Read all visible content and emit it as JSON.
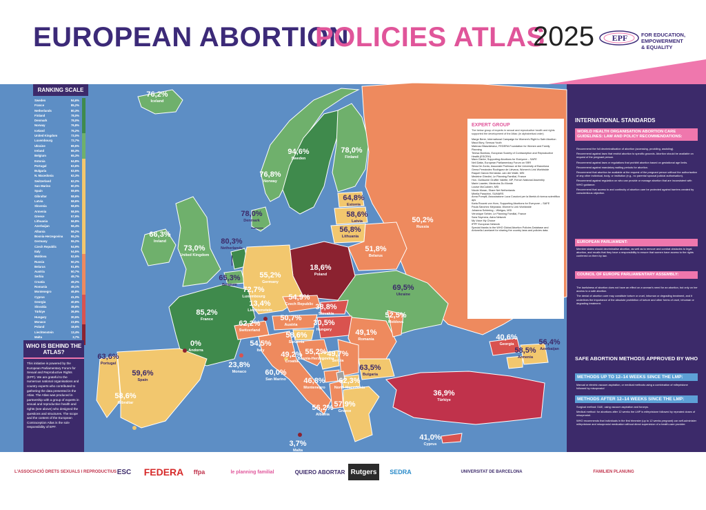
{
  "header": {
    "title_part1": "EUROPEAN ABORTION",
    "title_part2": "POLICIES ATLAS",
    "year": "2025",
    "org_logo": "EPF",
    "org_tagline": "FOR EDUCATION,\nEMPOWERMENT\n& EQUALITY"
  },
  "colors": {
    "dark_green": "#3f8a4c",
    "light_green": "#6fb06c",
    "yellow": "#f2c76e",
    "orange": "#ee8a5e",
    "red": "#d9534f",
    "dark_red": "#8b2230",
    "crimson": "#c0324b",
    "navy": "#3c2a6a",
    "pink": "#ef77ad",
    "sea": "#5d8ec5"
  },
  "ranking": {
    "title": "RANKING SCALE",
    "rows": [
      {
        "name": "Sweden",
        "value": "94,6%"
      },
      {
        "name": "France",
        "value": "85,2%"
      },
      {
        "name": "Netherlands",
        "value": "80,3%"
      },
      {
        "name": "Finland",
        "value": "78,0%"
      },
      {
        "name": "Denmark",
        "value": "78,0%"
      },
      {
        "name": "Norway",
        "value": "76,8%"
      },
      {
        "name": "Iceland",
        "value": "76,2%"
      },
      {
        "name": "United Kingdom",
        "value": "73,0%"
      },
      {
        "name": "Luxembourg",
        "value": "72,7%"
      },
      {
        "name": "Ukraine",
        "value": "69,5%"
      },
      {
        "name": "Ireland",
        "value": "66,3%"
      },
      {
        "name": "Belgium",
        "value": "65,3%"
      },
      {
        "name": "Estonia",
        "value": "64,8%"
      },
      {
        "name": "Portugal",
        "value": "63,6%"
      },
      {
        "name": "Bulgaria",
        "value": "63,5%"
      },
      {
        "name": "N. Macedonia",
        "value": "62,3%"
      },
      {
        "name": "Switzerland",
        "value": "62,2%"
      },
      {
        "name": "San Marino",
        "value": "60,0%"
      },
      {
        "name": "Spain",
        "value": "59,6%"
      },
      {
        "name": "Gibraltar",
        "value": "58,6%"
      },
      {
        "name": "Latvia",
        "value": "58,6%"
      },
      {
        "name": "Slovenia",
        "value": "58,6%"
      },
      {
        "name": "Armenia",
        "value": "58,5%"
      },
      {
        "name": "Greece",
        "value": "57,9%"
      },
      {
        "name": "Lithuania",
        "value": "56,8%"
      },
      {
        "name": "Azerbaijan",
        "value": "56,4%"
      },
      {
        "name": "Albania",
        "value": "56,2%"
      },
      {
        "name": "Bosnia-Herzegovina",
        "value": "55,2%"
      },
      {
        "name": "Germany",
        "value": "55,2%"
      },
      {
        "name": "Czech Republic",
        "value": "54,9%"
      },
      {
        "name": "Italy",
        "value": "54,5%"
      },
      {
        "name": "Moldova",
        "value": "52,5%"
      },
      {
        "name": "Russia",
        "value": "50,2%"
      },
      {
        "name": "Belarus",
        "value": "51,8%"
      },
      {
        "name": "Austria",
        "value": "50,7%"
      },
      {
        "name": "Serbia",
        "value": "49,7%"
      },
      {
        "name": "Croatia",
        "value": "49,2%"
      },
      {
        "name": "Romania",
        "value": "49,1%"
      },
      {
        "name": "Montenegro",
        "value": "46,8%"
      },
      {
        "name": "Cyprus",
        "value": "41,0%"
      },
      {
        "name": "Georgia",
        "value": "40,6%"
      },
      {
        "name": "Slovakia",
        "value": "38,8%"
      },
      {
        "name": "Türkiye",
        "value": "36,9%"
      },
      {
        "name": "Hungary",
        "value": "30,5%"
      },
      {
        "name": "Monaco",
        "value": "23,8%"
      },
      {
        "name": "Poland",
        "value": "18,6%"
      },
      {
        "name": "Liechtenstein",
        "value": "13,4%"
      },
      {
        "name": "Malta",
        "value": "3,7%"
      },
      {
        "name": "Andorra",
        "value": "0%"
      }
    ]
  },
  "countries": [
    {
      "name": "Iceland",
      "value": "76,2%"
    },
    {
      "name": "Sweden",
      "value": "94,6%"
    },
    {
      "name": "Finland",
      "value": "78,0%"
    },
    {
      "name": "Norway",
      "value": "76,8%"
    },
    {
      "name": "Denmark",
      "value": "78,0%"
    },
    {
      "name": "Estonia",
      "value": "64,8%"
    },
    {
      "name": "Latvia",
      "value": "58,6%"
    },
    {
      "name": "Lithuania",
      "value": "56,8%"
    },
    {
      "name": "Russia",
      "value": "50,2%"
    },
    {
      "name": "Ireland",
      "value": "66,3%"
    },
    {
      "name": "United Kingdom",
      "value": "73,0%"
    },
    {
      "name": "Netherlands",
      "value": "80,3%"
    },
    {
      "name": "Belgium",
      "value": "65,3%"
    },
    {
      "name": "Luxembourg",
      "value": "72,7%"
    },
    {
      "name": "Germany",
      "value": "55,2%"
    },
    {
      "name": "Poland",
      "value": "18,6%"
    },
    {
      "name": "Belarus",
      "value": "51,8%"
    },
    {
      "name": "Ukraine",
      "value": "69,5%"
    },
    {
      "name": "France",
      "value": "85,2%"
    },
    {
      "name": "Liechtenstein",
      "value": "13,4%"
    },
    {
      "name": "Czech Republic",
      "value": "54,9%"
    },
    {
      "name": "Slovakia",
      "value": "38,8%"
    },
    {
      "name": "Switzerland",
      "value": "62,2%"
    },
    {
      "name": "Austria",
      "value": "50,7%"
    },
    {
      "name": "Hungary",
      "value": "30,5%"
    },
    {
      "name": "Moldova",
      "value": "52,5%"
    },
    {
      "name": "Romania",
      "value": "49,1%"
    },
    {
      "name": "Andorra",
      "value": "0%"
    },
    {
      "name": "Slovenia",
      "value": "58,6%"
    },
    {
      "name": "Italy",
      "value": "54,5%"
    },
    {
      "name": "Croatia",
      "value": "49,2%"
    },
    {
      "name": "Serbia",
      "value": "49,7%"
    },
    {
      "name": "Bosnia-Herzegovina",
      "value": "55,2%"
    },
    {
      "name": "Georgia",
      "value": "40,6%"
    },
    {
      "name": "Azerbaijan",
      "value": "56,4%"
    },
    {
      "name": "Armenia",
      "value": "58,5%"
    },
    {
      "name": "Portugal",
      "value": "63,6%"
    },
    {
      "name": "Spain",
      "value": "59,6%"
    },
    {
      "name": "Monaco",
      "value": "23,8%"
    },
    {
      "name": "San Marino",
      "value": "60,0%"
    },
    {
      "name": "Montenegro",
      "value": "46,8%"
    },
    {
      "name": "North Macedonia",
      "value": "62,3%"
    },
    {
      "name": "Bulgaria",
      "value": "63,5%"
    },
    {
      "name": "Türkiye",
      "value": "36,9%"
    },
    {
      "name": "Gibraltar",
      "value": "58,6%"
    },
    {
      "name": "Albania",
      "value": "56,2%"
    },
    {
      "name": "Greece",
      "value": "57,9%"
    },
    {
      "name": "Malta",
      "value": "3,7%"
    },
    {
      "name": "Cyprus",
      "value": "41,0%"
    }
  ],
  "who": {
    "title": "WHO IS BEHIND THE ATLAS?",
    "text": "This initiative is powered by the European Parliamentary Forum for Sexual and Reproductive Rights (EPF). We are grateful to the numerous national organisations and country experts who contributed to gathering the data presented in the Atlas. The Atlas was produced in partnership with a group of experts in sexual and reproductive health and rights (see above) who designed the questions and structures. The scope and the content of the European Contraception Atlas is the sole responsibility of EPF."
  },
  "expert": {
    "title": "EXPERT GROUP",
    "intro": "The below group of experts in sexual and reproductive health and rights supported the development of the Atlas: (in alphabetical order)",
    "members": [
      "Marge Berer, International Campaign for Women's Right to Safe Abortion",
      "Maud Bury, Sensoa Youth",
      "Mateusz Błaszkiewicz, FEDERA Foundation for Women and Family Planning",
      "Teresa Bombas, European Society of Contraception and Reproductive Health (ESCRH)",
      "Mara Clarke, Supporting Abortions for Everyone – SAFE",
      "Neil Datta, European Parliamentary Forum on SRR",
      "Silvia De Zordo, Associate Professor at the University of Barcelona",
      "Gema Fernández Rodríguez de Liévana, Women's Link Worldwide",
      "Raquel García Hernánda -van der Walle, MSI",
      "Medeine Ghedini, Le Planning Familial, France",
      "Hon. Guillaume Gruffier Valette, MP, French National Assembly",
      "Marie Laanter, Medecins Du Monde",
      "Louise McCudden, MSI",
      "Nicole Moran, Share Net Netherlands",
      "Mirella Parachini, SUMARS",
      "Anna Pompili, Associazione Luca Coscioni per la libertà di ricerca scientifica aps",
      "Karla Roczek von Horn, Supporting Abortions for Everyone – SAFE",
      "Paula Sánchez Mejorada, Women's Link Worldwide",
      "Johanna Schiering – Wielgus, MSI",
      "Veronique Sehier, Le Planning Familial, France",
      "Sara Szymera, Astra Network",
      "My Voice My Choice",
      "IPPF European Network",
      "Special thanks to the WHO Global Abortion Policies Database and Antonella Lavelanet for sharing the country laws and policies data."
    ]
  },
  "standards": {
    "title": "INTERNATIONAL STANDARDS",
    "who_box": "WORLD HEALTH ORGANISATION ABORTION CARE GUIDELINES: LAW AND POLICY RECOMMENDATIONS:",
    "who_items": [
      "Recommend the full decriminalisation of abortion (accessing, providing, assisting).",
      "Recommend against laws that restrict abortion to specific grounds. Abortion should be available on request of the pregnant person.",
      "Recommend against laws or regulations that prohibit abortion based on gestational age limits.",
      "Recommend against mandatory waiting periods for abortion.",
      "Recommend that abortion be available at the request of the pregnant person without the authorisation of any other individual, body, or institution (e.g., no parental spousal judicial authorisation).",
      "Recommend against regulation on who can provide or manage abortion that are inconsistent with WHO guidance.",
      "Recommend that access to and continuity of abortion care be protected against barriers created by conscientious objection."
    ],
    "ep_box": "EUROPEAN PARLIAMENT:",
    "ep_text": "Member states should decriminalise abortion, as well as to remove and combat obstacles to legal abortion, and recalls that they have a responsibility to ensure that women have access to the rights conferred on them by law.",
    "coe_box": "COUNCIL OF EUROPE PARLIAMENTARY ASSEMBLY:",
    "coe_items": [
      "The lawfulness of abortion does not have an effect on a woman's need for an abortion, but only on her access to a safe abortion.",
      "The denial of abortion care may constitute torture or cruel, inhuman or degrading treatment, and it underlines the importance of the absolute prohibition of torture and other forms of cruel, inhuman or degrading treatment."
    ]
  },
  "methods": {
    "title": "SAFE ABORTION METHODS APPROVED BY WHO",
    "early_box": "METHODS UP TO 12–14 WEEKS SINCE THE LMP:",
    "early_text": "Manual or electric vacuum aspiration, or medical methods using a combination of mifepristone followed by misoprostol",
    "late_box": "METHODS AFTER 12–14 WEEKS SINCE THE LMP:",
    "late_items": [
      "Surgical method: D&E, using vacuum aspiration and forceps.",
      "Medical method: for abortions after 12 weeks the LMP is mifepristone followed by repeated doses of misoprostol.",
      "WHO recommends that individuals in the first trimester (up to 12 weeks pregnant) can self-administer mifepristone and misoprostol medication without direct supervision of a health-care provider."
    ]
  },
  "partners": [
    "L'ASSOCIACIÓ DRETS SEXUALS I REPRODUCTIUS",
    "ESC",
    "FEDERA",
    "ffpa",
    "le planning familial",
    "QUIERO ABORTAR",
    "Rutgers",
    "SEDRA",
    "UNIVERSITAT DE BARCELONA",
    "FAMILIEN PLANUNG"
  ]
}
